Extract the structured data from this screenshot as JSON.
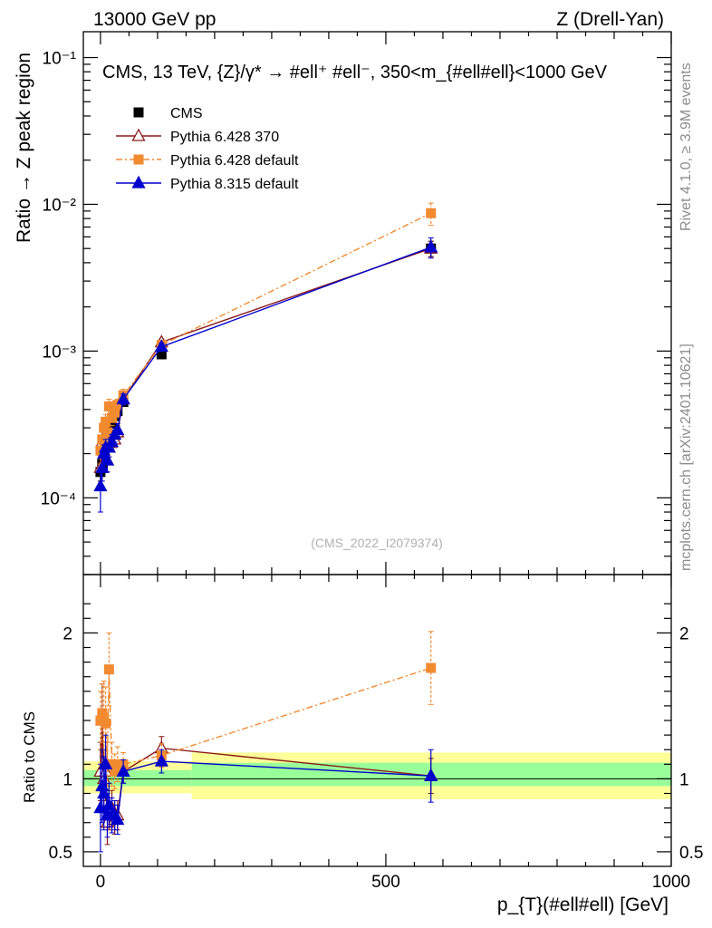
{
  "header": {
    "left": "13000 GeV pp",
    "right": "Z (Drell-Yan)"
  },
  "side_labels": {
    "rivet": "Rivet 4.1.0, ≥ 3.9M events",
    "mcplots": "mcplots.cern.ch [arXiv:2401.10621]"
  },
  "chart_data": {
    "type": "scatter",
    "title": "CMS, 13 TeV, {Z}/γ* → #ell⁺ #ell⁻, 350<m_{#ell#ell}<1000 GeV",
    "analysis_id": "(CMS_2022_I2079374)",
    "xlabel": "p_{T}(#ell#ell) [GeV]",
    "ylabel": "Ratio → Z peak region",
    "ratio_ylabel": "Ratio to CMS",
    "xlim": [
      -30,
      1000
    ],
    "ylim": [
      3e-05,
      0.15
    ],
    "ratio_ylim": [
      0.4,
      2.4
    ],
    "yscale": "log",
    "x_ticks": [
      {
        "value": 0,
        "label": "0"
      },
      {
        "value": 500,
        "label": "500"
      },
      {
        "value": 1000,
        "label": "1000"
      }
    ],
    "y_ticks": [
      {
        "value": 0.1,
        "label": "10⁻¹"
      },
      {
        "value": 0.01,
        "label": "10⁻²"
      },
      {
        "value": 0.001,
        "label": "10⁻³"
      },
      {
        "value": 0.0001,
        "label": "10⁻⁴"
      }
    ],
    "ratio_ticks": [
      {
        "value": 0.5,
        "label": "0.5"
      },
      {
        "value": 1,
        "label": "1"
      },
      {
        "value": 2,
        "label": "2"
      }
    ],
    "bands": [
      {
        "xmin": -30,
        "xmax": 160,
        "inner": [
          0.95,
          1.06
        ],
        "outer": [
          0.9,
          1.12
        ]
      },
      {
        "xmin": 160,
        "xmax": 1000,
        "inner": [
          0.95,
          1.11
        ],
        "outer": [
          0.86,
          1.18
        ]
      }
    ],
    "legend": {
      "position": "top-left"
    },
    "series": [
      {
        "name": "CMS",
        "color": "#000000",
        "marker": "square",
        "line": "none",
        "x": [
          0,
          3,
          6,
          9,
          12,
          15,
          20,
          25,
          30,
          40,
          107,
          579
        ],
        "y": [
          0.00015,
          0.00017,
          0.00021,
          0.00024,
          0.00026,
          0.00027,
          0.00032,
          0.00036,
          0.00039,
          0.00045,
          0.00095,
          0.005
        ],
        "err": [
          2e-05,
          2e-05,
          2e-05,
          2e-05,
          2e-05,
          2e-05,
          2e-05,
          2e-05,
          2e-05,
          2e-05,
          6e-05,
          0.0006
        ]
      },
      {
        "name": "Pythia 6.428 370",
        "color": "#8b1a1a",
        "marker": "open-triangle",
        "line": "solid",
        "x": [
          0,
          3,
          6,
          9,
          12,
          15,
          20,
          25,
          30,
          40,
          107,
          579
        ],
        "y": [
          0.00016,
          0.00024,
          0.00021,
          0.00025,
          0.00018,
          0.00022,
          0.00026,
          0.00025,
          0.00028,
          0.00047,
          0.00115,
          0.005
        ],
        "err": [
          3e-05,
          4e-05,
          3e-05,
          3e-05,
          3e-05,
          3e-05,
          3e-05,
          3e-05,
          3e-05,
          4e-05,
          6e-05,
          0.0006
        ]
      },
      {
        "name": "Pythia 6.428 default",
        "color": "#f28a30",
        "marker": "square",
        "line": "dashdot",
        "x": [
          0,
          3,
          6,
          9,
          12,
          15,
          20,
          25,
          30,
          40,
          107,
          579
        ],
        "y": [
          0.00021,
          0.00025,
          0.0003,
          0.00033,
          0.00028,
          0.00042,
          0.00035,
          0.00038,
          0.00043,
          0.0005,
          0.0011,
          0.0087
        ],
        "err": [
          4e-05,
          4e-05,
          4e-05,
          4e-05,
          4e-05,
          5e-05,
          4e-05,
          4e-05,
          4e-05,
          5e-05,
          6e-05,
          0.0015
        ]
      },
      {
        "name": "Pythia 8.315 default",
        "color": "#0000cc",
        "marker": "triangle",
        "line": "solid",
        "x": [
          0,
          3,
          6,
          9,
          12,
          15,
          20,
          25,
          30,
          40,
          107,
          579
        ],
        "y": [
          0.00012,
          0.00016,
          0.0002,
          0.00022,
          0.00018,
          0.00022,
          0.00024,
          0.00027,
          0.00029,
          0.00047,
          0.00107,
          0.0051
        ],
        "err": [
          4e-05,
          3e-05,
          3e-05,
          3e-05,
          3e-05,
          3e-05,
          3e-05,
          3e-05,
          3e-05,
          4e-05,
          6e-05,
          0.0008
        ]
      }
    ],
    "ratio_series": [
      {
        "name": "Pythia 6.428 370",
        "color": "#8b1a1a",
        "marker": "open-triangle",
        "line": "solid",
        "x": [
          0,
          3,
          6,
          9,
          12,
          15,
          20,
          25,
          30,
          40,
          107,
          579
        ],
        "y": [
          1.05,
          1.4,
          1.0,
          1.05,
          0.7,
          0.8,
          0.8,
          0.72,
          0.75,
          1.05,
          1.21,
          1.02
        ],
        "err": [
          0.2,
          0.25,
          0.2,
          0.2,
          0.15,
          0.15,
          0.12,
          0.1,
          0.1,
          0.08,
          0.08,
          0.12
        ]
      },
      {
        "name": "Pythia 6.428 default",
        "color": "#f28a30",
        "marker": "square",
        "line": "dashdot",
        "x": [
          0,
          3,
          6,
          9,
          12,
          15,
          20,
          25,
          30,
          40,
          107,
          579
        ],
        "y": [
          1.4,
          1.45,
          1.42,
          1.38,
          1.1,
          1.75,
          1.1,
          1.05,
          1.1,
          1.1,
          1.16,
          1.76
        ],
        "err": [
          0.2,
          0.2,
          0.25,
          0.25,
          0.15,
          0.25,
          0.15,
          0.12,
          0.12,
          0.08,
          0.08,
          0.25
        ]
      },
      {
        "name": "Pythia 8.315 default",
        "color": "#0000cc",
        "marker": "triangle",
        "line": "solid",
        "x": [
          0,
          3,
          6,
          9,
          12,
          15,
          20,
          25,
          30,
          40,
          107,
          579
        ],
        "y": [
          0.8,
          0.95,
          0.9,
          1.1,
          0.75,
          0.82,
          0.75,
          0.75,
          0.72,
          1.05,
          1.12,
          1.02
        ],
        "err": [
          0.3,
          0.25,
          0.25,
          0.2,
          0.15,
          0.15,
          0.12,
          0.1,
          0.1,
          0.08,
          0.08,
          0.18
        ]
      }
    ]
  }
}
